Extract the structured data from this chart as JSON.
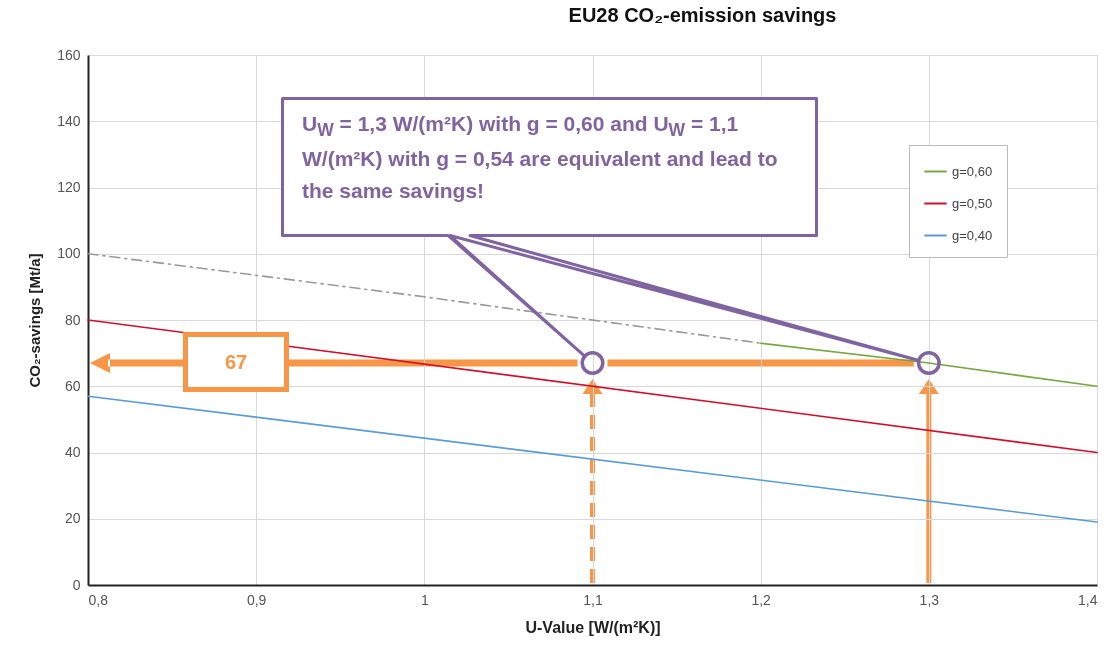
{
  "chart_data": {
    "type": "line",
    "title": "EU28 CO₂-emission savings",
    "xlabel": "U-Value [W/(m²K)]",
    "ylabel": "CO₂-savings [Mt/a]",
    "xlim": [
      0.8,
      1.4
    ],
    "xticks": [
      {
        "value": 0.8,
        "label": "0,8"
      },
      {
        "value": 0.9,
        "label": "0,9"
      },
      1,
      {
        "value": 1.1,
        "label": "1,1"
      },
      {
        "value": 1.2,
        "label": "1,2"
      },
      {
        "value": 1.3,
        "label": "1,3"
      },
      {
        "value": 1.4,
        "label": "1,4"
      }
    ],
    "ylim": [
      0,
      160
    ],
    "yticks": [
      0,
      20,
      40,
      60,
      80,
      100,
      120,
      140,
      160
    ],
    "grid": true,
    "legend": "top right",
    "series": [
      {
        "name": "g=0,60",
        "color": "#77a844",
        "x": [
          1.2,
          1.3,
          1.4
        ],
        "values": [
          73,
          67,
          60
        ]
      },
      {
        "color": "#9a9a9a",
        "line_style": "dashed",
        "x": [
          0.8,
          1.0,
          1.2
        ],
        "values": [
          100,
          87,
          73
        ]
      },
      {
        "name": "g=0,50",
        "color": "#d0102a",
        "x": [
          0.8,
          1.4
        ],
        "values": [
          80,
          40
        ]
      },
      {
        "name": "g=0,40",
        "color": "#5b9bd5",
        "x": [
          0.8,
          1.4
        ],
        "values": [
          57,
          19
        ]
      },
      {
        "type": "scatter",
        "color": "#8064a2",
        "marker": "circle",
        "x": [
          1.1,
          1.3
        ],
        "values": [
          67,
          67
        ]
      }
    ],
    "annotations": [
      "U$_{W}$ = 1,3 W/(m²K) with g = 0,60 and U$_{W}$ = 1,1 W/(m²K) with g = 0,54 are equivalent and lead to the same savings!",
      "67"
    ]
  }
}
